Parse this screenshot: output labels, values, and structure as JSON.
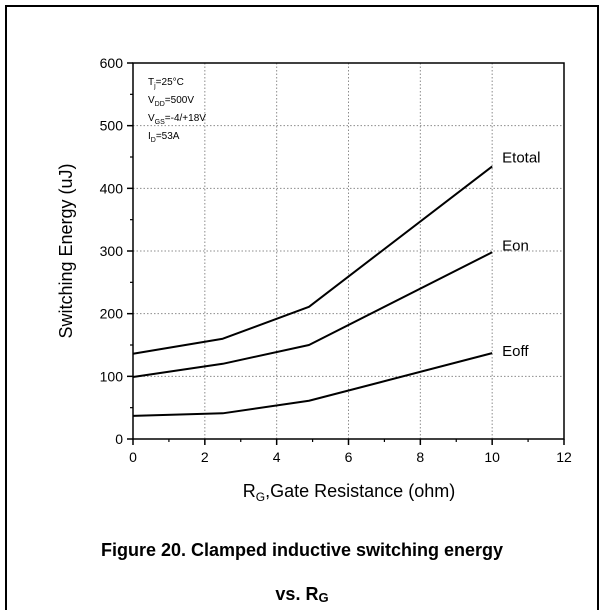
{
  "chart_data": {
    "type": "line",
    "xlabel": {
      "main": "R",
      "sub": "G",
      "rest": ",Gate Resistance (ohm)"
    },
    "ylabel": "Switching Energy (uJ)",
    "xlim": [
      0,
      12
    ],
    "ylim": [
      0,
      600
    ],
    "xticks": [
      0,
      2,
      4,
      6,
      8,
      10,
      12
    ],
    "yticks": [
      0,
      100,
      200,
      300,
      400,
      500,
      600
    ],
    "grid": true,
    "legend": "inline labels at line ends",
    "series": [
      {
        "name": "Etotal",
        "x": [
          0,
          2.5,
          4.9,
          10
        ],
        "y": [
          136,
          160,
          211,
          435
        ]
      },
      {
        "name": "Eon",
        "x": [
          0,
          2.5,
          4.9,
          10
        ],
        "y": [
          99,
          120,
          150,
          298
        ]
      },
      {
        "name": "Eoff",
        "x": [
          0,
          2.5,
          4.9,
          10
        ],
        "y": [
          37,
          41,
          61,
          137
        ]
      }
    ],
    "annotations": [
      {
        "main": "T",
        "sub": "j",
        "rest": "=25°C"
      },
      {
        "main": "V",
        "sub": "DD",
        "rest": "=500V"
      },
      {
        "main": "V",
        "sub": "GS",
        "rest": "=-4/+18V"
      },
      {
        "main": "I",
        "sub": "D",
        "rest": "=53A"
      }
    ]
  },
  "caption": {
    "line1": "Figure 20. Clamped inductive switching energy",
    "line2_main": "vs. R",
    "line2_sub": "G"
  },
  "colors": {
    "line": "#000000",
    "grid": "#8c8c8c",
    "axis": "#000000"
  }
}
